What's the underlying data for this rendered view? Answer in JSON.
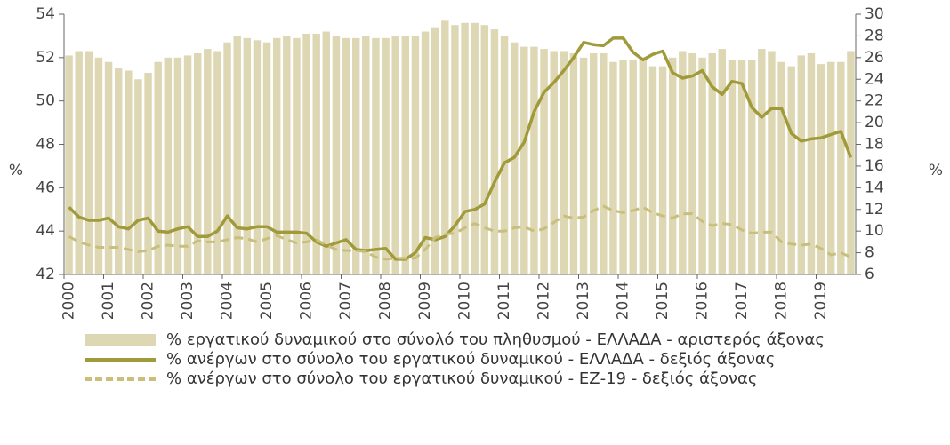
{
  "chart_data": {
    "type": "bar_line",
    "y_label": "%",
    "y2_label": "%",
    "categories": [
      "2000",
      null,
      null,
      null,
      "2001",
      null,
      null,
      null,
      "2002",
      null,
      null,
      null,
      "2003",
      null,
      null,
      null,
      "2004",
      null,
      null,
      null,
      "2005",
      null,
      null,
      null,
      "2006",
      null,
      null,
      null,
      "2007",
      null,
      null,
      null,
      "2008",
      null,
      null,
      null,
      "2009",
      null,
      null,
      null,
      "2010",
      null,
      null,
      null,
      "2011",
      null,
      null,
      null,
      "2012",
      null,
      null,
      null,
      "2013",
      null,
      null,
      null,
      "2014",
      null,
      null,
      null,
      "2015",
      null,
      null,
      null,
      "2016",
      null,
      null,
      null,
      "2017",
      null,
      null,
      null,
      "2018",
      null,
      null,
      null,
      "2019",
      null,
      null,
      null
    ],
    "ylim": [
      42,
      54
    ],
    "yticks": [
      42,
      44,
      46,
      48,
      50,
      52,
      54
    ],
    "y2lim": [
      6,
      30
    ],
    "y2ticks": [
      6,
      8,
      10,
      12,
      14,
      16,
      18,
      20,
      22,
      24,
      26,
      28,
      30
    ],
    "series": [
      {
        "name": "% εργατικού δυναμικού στο σύνολό του πληθυσμού - ΕΛΛΑΔΑ - αριστερός άξονας",
        "kind": "bar",
        "color": "#ddd7b4",
        "values": [
          52.1,
          52.3,
          52.3,
          52.0,
          51.8,
          51.5,
          51.4,
          51.0,
          51.3,
          51.8,
          52.0,
          52.0,
          52.1,
          52.2,
          52.4,
          52.3,
          52.7,
          53.0,
          52.9,
          52.8,
          52.7,
          52.9,
          53.0,
          52.9,
          53.1,
          53.1,
          53.2,
          53.0,
          52.9,
          52.9,
          53.0,
          52.9,
          52.9,
          53.0,
          53.0,
          53.0,
          53.2,
          53.4,
          53.7,
          53.5,
          53.6,
          53.6,
          53.5,
          53.3,
          53.0,
          52.7,
          52.5,
          52.5,
          52.4,
          52.3,
          52.3,
          52.2,
          52.0,
          52.2,
          52.2,
          51.8,
          51.9,
          51.9,
          52.0,
          51.6,
          51.6,
          52.0,
          52.3,
          52.2,
          52.0,
          52.2,
          52.4,
          51.9,
          51.9,
          51.9,
          52.4,
          52.3,
          51.8,
          51.6,
          52.1,
          52.2,
          51.7,
          51.8,
          51.8,
          52.3
        ]
      },
      {
        "name": "% ανέργων στο σύνολο του εργατικού δυναμικού - ΕΛΛΑΔΑ - δεξιός άξονας",
        "kind": "line",
        "dash": "solid",
        "axis": "y2",
        "color": "#a19a3b",
        "values": [
          12.2,
          11.3,
          11.0,
          11.0,
          11.2,
          10.4,
          10.2,
          11.0,
          11.2,
          10.0,
          9.9,
          10.2,
          10.4,
          9.5,
          9.5,
          10.0,
          11.4,
          10.3,
          10.2,
          10.4,
          10.4,
          9.9,
          9.9,
          9.9,
          9.8,
          9.0,
          8.6,
          8.9,
          9.2,
          8.3,
          8.2,
          8.3,
          8.4,
          7.4,
          7.4,
          8.0,
          9.4,
          9.2,
          9.5,
          10.5,
          11.8,
          12.0,
          12.5,
          14.5,
          16.3,
          16.8,
          18.2,
          21.0,
          22.8,
          23.7,
          24.8,
          26.0,
          27.4,
          27.2,
          27.1,
          27.8,
          27.8,
          26.5,
          25.8,
          26.3,
          26.6,
          24.6,
          24.1,
          24.3,
          24.8,
          23.3,
          22.6,
          23.8,
          23.6,
          21.4,
          20.5,
          21.3,
          21.3,
          19.0,
          18.3,
          18.5,
          18.6,
          18.9,
          19.2,
          16.8
        ]
      },
      {
        "name": "% ανέργων στο σύνολο του εργατικού δυναμικού - ΕΖ-19 - δεξιός άξονας",
        "kind": "line",
        "dash": "dashed",
        "axis": "y2",
        "color": "#c8bf7c",
        "values": [
          9.5,
          9.0,
          8.7,
          8.5,
          8.5,
          8.5,
          8.3,
          8.1,
          8.2,
          8.6,
          8.7,
          8.6,
          8.6,
          9.1,
          9.0,
          9.0,
          9.2,
          9.4,
          9.3,
          9.0,
          9.3,
          9.6,
          9.2,
          8.9,
          9.0,
          9.2,
          8.7,
          8.3,
          8.2,
          8.2,
          8.1,
          7.6,
          7.4,
          7.5,
          7.5,
          7.5,
          8.3,
          9.4,
          9.7,
          9.8,
          10.3,
          10.7,
          10.3,
          10.0,
          10.0,
          10.3,
          10.4,
          10.0,
          10.2,
          10.8,
          11.4,
          11.2,
          11.3,
          11.9,
          12.3,
          11.9,
          11.7,
          11.9,
          12.2,
          11.7,
          11.4,
          11.2,
          11.6,
          11.6,
          10.9,
          10.5,
          10.7,
          10.6,
          10.1,
          9.8,
          9.9,
          9.9,
          9.0,
          8.8,
          8.7,
          8.8,
          8.4,
          7.8,
          8.0,
          7.6
        ]
      }
    ]
  }
}
